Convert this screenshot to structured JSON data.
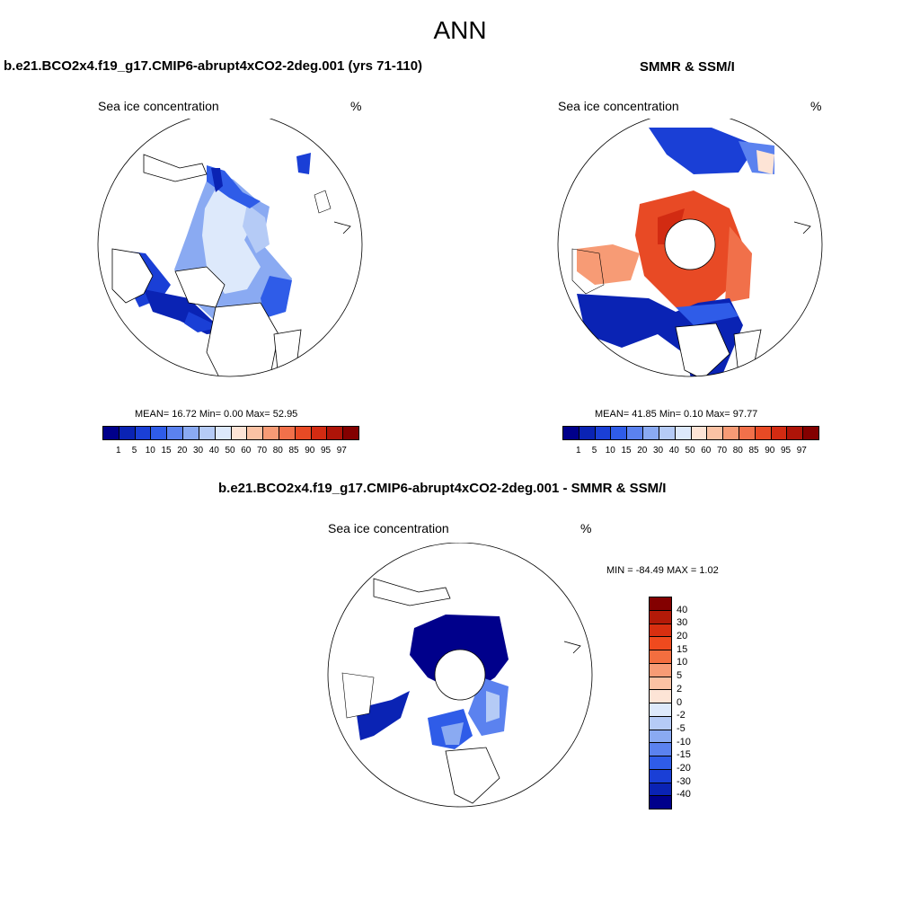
{
  "main_title": "ANN",
  "panel_left": {
    "title": "b.e21.BCO2x4.f19_g17.CMIP6-abrupt4xCO2-2deg.001 (yrs 71-110)",
    "variable": "Sea ice concentration",
    "units": "%",
    "stats": "MEAN=  16.72  Min=   0.00  Max=  52.95"
  },
  "panel_right": {
    "title": "SMMR & SSM/I",
    "variable": "Sea ice concentration",
    "units": "%",
    "stats": "MEAN=  41.85  Min=   0.10  Max=  97.77"
  },
  "panel_diff": {
    "title": "b.e21.BCO2x4.f19_g17.CMIP6-abrupt4xCO2-2deg.001 - SMMR & SSM/I",
    "variable": "Sea ice concentration",
    "units": "%",
    "stats": "MIN = -84.49 MAX =   1.02"
  },
  "colorbar_levels": [
    "1",
    "5",
    "10",
    "15",
    "20",
    "30",
    "40",
    "50",
    "60",
    "70",
    "80",
    "85",
    "90",
    "95",
    "97"
  ],
  "colorbar_colors": [
    "#00008b",
    "#0a23b4",
    "#1a3fd6",
    "#2f5ce8",
    "#5b82ef",
    "#8aaaf2",
    "#b5cbf6",
    "#dde9fb",
    "#fde4d6",
    "#fbc2a4",
    "#f79b75",
    "#f1704a",
    "#e84a25",
    "#d22b12",
    "#ae1408",
    "#830000"
  ],
  "diff_levels": [
    "40",
    "30",
    "20",
    "15",
    "10",
    "5",
    "2",
    "0",
    "-2",
    "-5",
    "-10",
    "-15",
    "-20",
    "-30",
    "-40"
  ],
  "diff_colors": [
    "#830000",
    "#b41a08",
    "#d82f10",
    "#ef4a1e",
    "#f36e3f",
    "#f79b75",
    "#fbc2a4",
    "#fde4d6",
    "#dde9fb",
    "#b5cbf6",
    "#8aaaf2",
    "#5b82ef",
    "#2f5ce8",
    "#1a3fd6",
    "#0a23b4",
    "#00008b"
  ]
}
